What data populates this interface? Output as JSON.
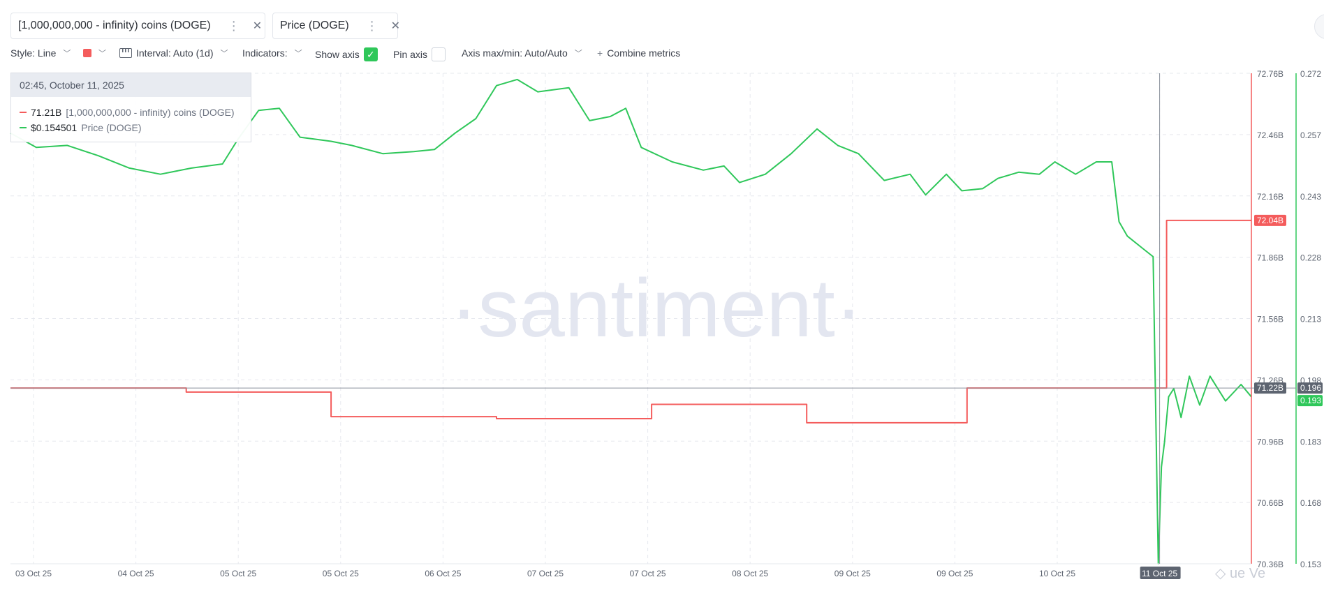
{
  "metrics": [
    {
      "label": "[1,000,000,000 - infinity) coins (DOGE)",
      "color": "#f45c5c"
    },
    {
      "label": "Price (DOGE)",
      "color": "#2fc75a"
    }
  ],
  "toolbar": {
    "style": "Style: Line",
    "interval": "Interval: Auto (1d)",
    "indicators": "Indicators:",
    "show_axis": "Show axis",
    "pin_axis": "Pin axis",
    "axis_maxmin": "Axis max/min: Auto/Auto",
    "combine": "Combine metrics",
    "plus": "+",
    "checkmark": "✓"
  },
  "tooltip": {
    "date": "02:45, October 11, 2025",
    "rows": [
      {
        "value": "71.21B",
        "name": "[1,000,000,000 - infinity) coins (DOGE)"
      },
      {
        "value": "$0.154501",
        "name": "Price (DOGE)"
      }
    ]
  },
  "watermark": "·santiment·",
  "corner_mark": "◇ ue Ve",
  "chart_data": {
    "type": "line",
    "x_ticks": [
      "03 Oct 25",
      "04 Oct 25",
      "05 Oct 25",
      "05 Oct 25",
      "06 Oct 25",
      "07 Oct 25",
      "07 Oct 25",
      "08 Oct 25",
      "09 Oct 25",
      "09 Oct 25",
      "10 Oct 25",
      "11 Oct 25"
    ],
    "x_highlight": "11 Oct 25",
    "x_range_days": [
      0,
      8.5
    ],
    "y_left": {
      "label": "",
      "ticks": [
        "72.76B",
        "72.46B",
        "72.16B",
        "71.86B",
        "71.56B",
        "71.26B",
        "70.96B",
        "70.66B",
        "70.36B"
      ],
      "range": [
        70.36,
        72.76
      ],
      "unit": "B",
      "current_badge": "72.04B",
      "crosshair_badge": "71.22B"
    },
    "y_right": {
      "label": "",
      "ticks": [
        "0.272",
        "0.257",
        "0.243",
        "0.228",
        "0.213",
        "0.198",
        "0.183",
        "0.168",
        "0.153"
      ],
      "range": [
        0.153,
        0.272
      ],
      "current_badge": "0.193",
      "crosshair_badge": "0.196"
    },
    "crosshair": {
      "x_day": 7.38,
      "y_left": 71.22
    },
    "grid": true,
    "legend": "top-left chips",
    "series": [
      {
        "name": "[1,000,000,000 - infinity) coins (DOGE)",
        "axis": "left",
        "color": "#f45c5c",
        "step": true,
        "points": [
          [
            0.0,
            71.22
          ],
          [
            1.7,
            71.22
          ],
          [
            1.7,
            71.2
          ],
          [
            3.1,
            71.2
          ],
          [
            3.1,
            71.08
          ],
          [
            4.7,
            71.08
          ],
          [
            4.7,
            71.07
          ],
          [
            6.2,
            71.07
          ],
          [
            6.2,
            71.14
          ],
          [
            7.7,
            71.14
          ],
          [
            7.7,
            71.05
          ],
          [
            9.25,
            71.05
          ],
          [
            9.25,
            71.22
          ],
          [
            11.18,
            71.22
          ],
          [
            11.18,
            72.04
          ],
          [
            12.0,
            72.04
          ]
        ]
      },
      {
        "name": "Price (DOGE)",
        "axis": "right",
        "color": "#2fc75a",
        "points": [
          [
            0.0,
            0.2575
          ],
          [
            0.25,
            0.254
          ],
          [
            0.55,
            0.2545
          ],
          [
            0.85,
            0.252
          ],
          [
            1.15,
            0.249
          ],
          [
            1.45,
            0.2475
          ],
          [
            1.75,
            0.249
          ],
          [
            2.05,
            0.25
          ],
          [
            2.2,
            0.256
          ],
          [
            2.4,
            0.263
          ],
          [
            2.6,
            0.2635
          ],
          [
            2.8,
            0.2565
          ],
          [
            3.1,
            0.2555
          ],
          [
            3.3,
            0.2545
          ],
          [
            3.6,
            0.2525
          ],
          [
            3.9,
            0.253
          ],
          [
            4.1,
            0.2535
          ],
          [
            4.3,
            0.2575
          ],
          [
            4.5,
            0.261
          ],
          [
            4.7,
            0.269
          ],
          [
            4.9,
            0.2705
          ],
          [
            5.1,
            0.2675
          ],
          [
            5.4,
            0.2685
          ],
          [
            5.6,
            0.2605
          ],
          [
            5.8,
            0.2615
          ],
          [
            5.95,
            0.2635
          ],
          [
            6.1,
            0.254
          ],
          [
            6.4,
            0.2505
          ],
          [
            6.7,
            0.2485
          ],
          [
            6.9,
            0.2495
          ],
          [
            7.05,
            0.2455
          ],
          [
            7.3,
            0.2475
          ],
          [
            7.55,
            0.2525
          ],
          [
            7.8,
            0.2585
          ],
          [
            8.0,
            0.2545
          ],
          [
            8.2,
            0.2525
          ],
          [
            8.45,
            0.246
          ],
          [
            8.7,
            0.2475
          ],
          [
            8.85,
            0.2425
          ],
          [
            9.05,
            0.2475
          ],
          [
            9.2,
            0.2435
          ],
          [
            9.4,
            0.244
          ],
          [
            9.55,
            0.2465
          ],
          [
            9.75,
            0.248
          ],
          [
            9.95,
            0.2475
          ],
          [
            10.1,
            0.2505
          ],
          [
            10.3,
            0.2475
          ],
          [
            10.5,
            0.2505
          ],
          [
            10.65,
            0.2505
          ],
          [
            10.72,
            0.236
          ],
          [
            10.8,
            0.2325
          ],
          [
            10.95,
            0.2295
          ],
          [
            11.05,
            0.2275
          ],
          [
            11.1,
            0.153
          ],
          [
            11.13,
            0.1765
          ],
          [
            11.16,
            0.1825
          ],
          [
            11.2,
            0.1935
          ],
          [
            11.25,
            0.1955
          ],
          [
            11.32,
            0.1885
          ],
          [
            11.4,
            0.1985
          ],
          [
            11.5,
            0.1915
          ],
          [
            11.6,
            0.1985
          ],
          [
            11.75,
            0.1925
          ],
          [
            11.9,
            0.1965
          ],
          [
            12.0,
            0.1935
          ]
        ]
      }
    ]
  }
}
